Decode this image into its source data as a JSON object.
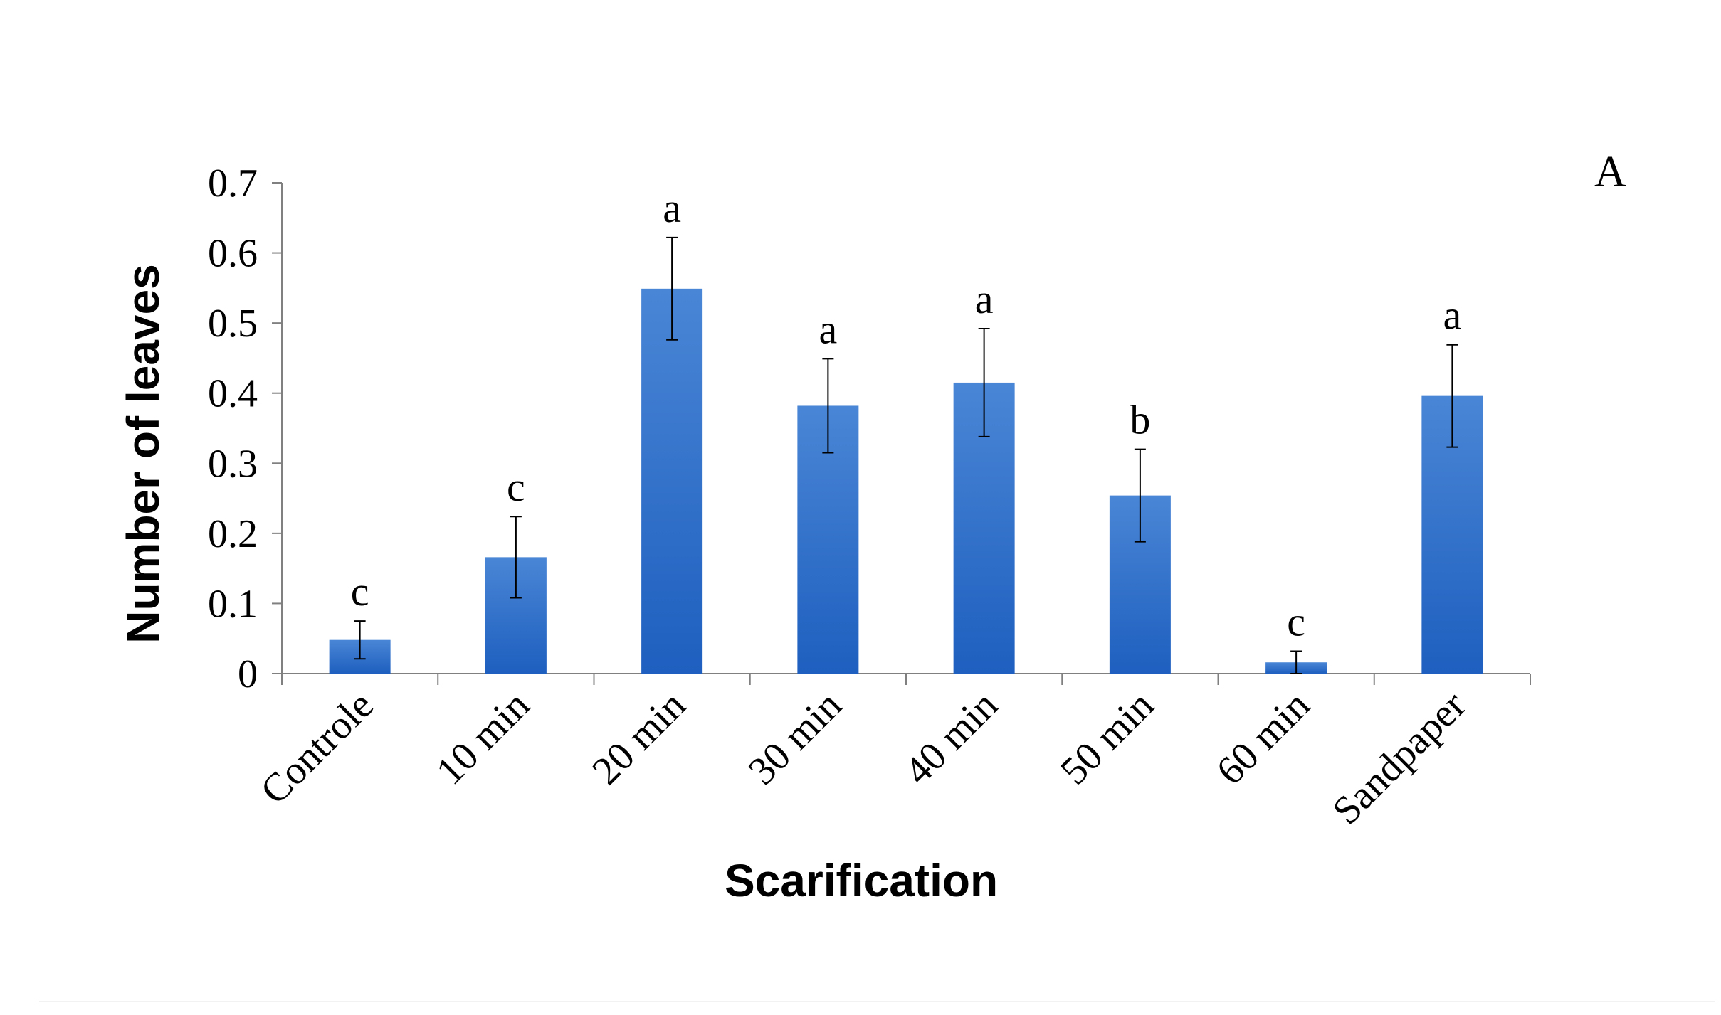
{
  "chart_data": {
    "type": "bar",
    "panel_label": "A",
    "title": "",
    "xlabel": "Scarification",
    "ylabel": "Number of leaves",
    "ylim": [
      0,
      0.7
    ],
    "yticks": [
      "0",
      "0.1",
      "0.2",
      "0.3",
      "0.4",
      "0.5",
      "0.6",
      "0.7"
    ],
    "ytick_values": [
      0,
      0.1,
      0.2,
      0.3,
      0.4,
      0.5,
      0.6,
      0.7
    ],
    "categories": [
      "Controle",
      "10 min",
      "20 min",
      "30 min",
      "40 min",
      "50 min",
      "60 min",
      "Sandpaper"
    ],
    "values": [
      0.048,
      0.166,
      0.549,
      0.382,
      0.415,
      0.254,
      0.016,
      0.396
    ],
    "errors": [
      0.027,
      0.058,
      0.073,
      0.067,
      0.077,
      0.066,
      0.016,
      0.073
    ],
    "letters": [
      "c",
      "c",
      "a",
      "a",
      "a",
      "b",
      "c",
      "a"
    ],
    "grid": false,
    "legend": "none",
    "bar_color_top": "#4a86d6",
    "bar_color_bottom": "#1e5fbf",
    "axis_color": "#808080"
  }
}
